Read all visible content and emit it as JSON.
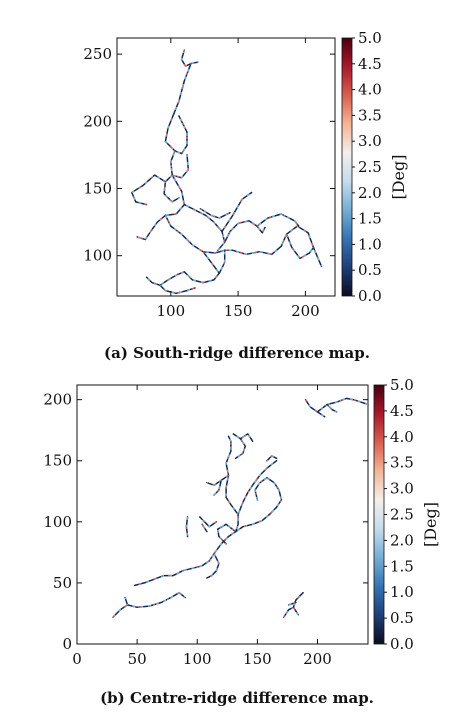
{
  "colors": {
    "axis": "#111111",
    "cmap_stops": [
      "#0b0b1e",
      "#1d3f78",
      "#3473b5",
      "#74aed6",
      "#c5dcec",
      "#f3efec",
      "#f5b596",
      "#d9604f",
      "#a8192b",
      "#4a0010"
    ]
  },
  "chart_data": [
    {
      "type": "line",
      "caption": "(a) South-ridge difference map.",
      "xlim": [
        60,
        222
      ],
      "ylim": [
        70,
        262
      ],
      "xticks": [
        "100",
        "150",
        "200"
      ],
      "yticks": [
        "100",
        "150",
        "200",
        "250"
      ],
      "colorbar": {
        "label": "[Deg]",
        "range": [
          0.0,
          5.0
        ],
        "ticks": [
          "0.0",
          "0.5",
          "1.0",
          "1.5",
          "2.0",
          "2.5",
          "3.0",
          "3.5",
          "4.0",
          "4.5",
          "5.0"
        ]
      },
      "series": [
        {
          "points": [
            [
              110,
              253
            ],
            [
              108,
              246
            ],
            [
              111,
              241
            ],
            [
              115,
              243
            ],
            [
              120,
              244
            ]
          ]
        },
        {
          "points": [
            [
              115,
              243
            ],
            [
              110,
              230
            ],
            [
              106,
              215
            ],
            [
              102,
              205
            ]
          ]
        },
        {
          "points": [
            [
              102,
              205
            ],
            [
              98,
              195
            ],
            [
              96,
              185
            ],
            [
              103,
              178
            ],
            [
              108,
              176
            ],
            [
              112,
              182
            ],
            [
              112,
              192
            ],
            [
              106,
              204
            ]
          ]
        },
        {
          "points": [
            [
              103,
              178
            ],
            [
              100,
              170
            ],
            [
              101,
              160
            ],
            [
              108,
              158
            ],
            [
              113,
              164
            ],
            [
              112,
              175
            ]
          ]
        },
        {
          "points": [
            [
              101,
              160
            ],
            [
              96,
              155
            ],
            [
              88,
              160
            ],
            [
              79,
              152
            ],
            [
              71,
              147
            ],
            [
              74,
              140
            ],
            [
              82,
              138
            ]
          ]
        },
        {
          "points": [
            [
              96,
              155
            ],
            [
              95,
              146
            ],
            [
              101,
              140
            ],
            [
              106,
              143
            ]
          ]
        },
        {
          "points": [
            [
              101,
              160
            ],
            [
              108,
              148
            ],
            [
              110,
              138
            ],
            [
              104,
              131
            ],
            [
              96,
              130
            ],
            [
              90,
              125
            ],
            [
              85,
              118
            ],
            [
              81,
              112
            ],
            [
              75,
              114
            ]
          ]
        },
        {
          "points": [
            [
              110,
              138
            ],
            [
              118,
              134
            ],
            [
              126,
              130
            ],
            [
              132,
              125
            ],
            [
              138,
              118
            ],
            [
              140,
              110
            ],
            [
              135,
              104
            ]
          ]
        },
        {
          "points": [
            [
              96,
              130
            ],
            [
              100,
              122
            ],
            [
              108,
              116
            ],
            [
              116,
              108
            ],
            [
              124,
              103
            ],
            [
              133,
              102
            ],
            [
              140,
              104
            ]
          ]
        },
        {
          "points": [
            [
              124,
              103
            ],
            [
              130,
              95
            ],
            [
              136,
              87
            ],
            [
              132,
              82
            ],
            [
              124,
              80
            ],
            [
              116,
              82
            ],
            [
              110,
              88
            ],
            [
              105,
              86
            ]
          ]
        },
        {
          "points": [
            [
              136,
              87
            ],
            [
              140,
              95
            ],
            [
              140,
              104
            ],
            [
              146,
              104
            ],
            [
              156,
              101
            ],
            [
              166,
              103
            ],
            [
              175,
              101
            ],
            [
              182,
              107
            ]
          ]
        },
        {
          "points": [
            [
              182,
              107
            ],
            [
              186,
              116
            ],
            [
              194,
              122
            ],
            [
              202,
              117
            ],
            [
              206,
              106
            ],
            [
              212,
              92
            ]
          ]
        },
        {
          "points": [
            [
              186,
              116
            ],
            [
              190,
              106
            ],
            [
              196,
              98
            ],
            [
              203,
              102
            ],
            [
              206,
              106
            ]
          ]
        },
        {
          "points": [
            [
              140,
              110
            ],
            [
              144,
              118
            ],
            [
              150,
              124
            ],
            [
              158,
              126
            ],
            [
              164,
              122
            ],
            [
              168,
              117
            ],
            [
              170,
              121
            ]
          ]
        },
        {
          "points": [
            [
              138,
              118
            ],
            [
              146,
              130
            ],
            [
              153,
              142
            ],
            [
              160,
              147
            ]
          ]
        },
        {
          "points": [
            [
              164,
              122
            ],
            [
              172,
              128
            ],
            [
              182,
              131
            ],
            [
              192,
              126
            ],
            [
              195,
              122
            ]
          ]
        },
        {
          "points": [
            [
              105,
              86
            ],
            [
              98,
              82
            ],
            [
              92,
              78
            ],
            [
              86,
              80
            ],
            [
              82,
              84
            ]
          ]
        },
        {
          "points": [
            [
              92,
              78
            ],
            [
              96,
              74
            ],
            [
              104,
              72
            ],
            [
              112,
              74
            ],
            [
              118,
              76
            ]
          ]
        },
        {
          "points": [
            [
              122,
              135
            ],
            [
              130,
              130
            ],
            [
              136,
              128
            ],
            [
              144,
              132
            ]
          ]
        }
      ]
    },
    {
      "type": "line",
      "caption": "(b) Centre-ridge difference map.",
      "xlim": [
        0,
        242
      ],
      "ylim": [
        0,
        212
      ],
      "xticks": [
        "0",
        "50",
        "100",
        "150",
        "200"
      ],
      "yticks": [
        "0",
        "50",
        "100",
        "150",
        "200"
      ],
      "colorbar": {
        "label": "[Deg]",
        "range": [
          0.0,
          5.0
        ],
        "ticks": [
          "0.0",
          "0.5",
          "1.0",
          "1.5",
          "2.0",
          "2.5",
          "3.0",
          "3.5",
          "4.0",
          "4.5",
          "5.0"
        ]
      },
      "series": [
        {
          "points": [
            [
              30,
              22
            ],
            [
              36,
              28
            ],
            [
              42,
              32
            ],
            [
              50,
              30
            ],
            [
              60,
              31
            ],
            [
              70,
              34
            ],
            [
              78,
              38
            ],
            [
              85,
              42
            ],
            [
              90,
              38
            ]
          ]
        },
        {
          "points": [
            [
              42,
              32
            ],
            [
              40,
              38
            ]
          ]
        },
        {
          "points": [
            [
              48,
              48
            ],
            [
              56,
              50
            ],
            [
              64,
              53
            ],
            [
              72,
              56
            ],
            [
              80,
              56
            ],
            [
              88,
              60
            ],
            [
              96,
              62
            ],
            [
              104,
              64
            ],
            [
              110,
              68
            ],
            [
              114,
              74
            ]
          ]
        },
        {
          "points": [
            [
              114,
              74
            ],
            [
              120,
              82
            ],
            [
              126,
              88
            ],
            [
              132,
              92
            ],
            [
              134,
              98
            ],
            [
              134,
              106
            ],
            [
              138,
              116
            ],
            [
              142,
              124
            ]
          ]
        },
        {
          "points": [
            [
              114,
              74
            ],
            [
              118,
              66
            ],
            [
              116,
              60
            ],
            [
              112,
              56
            ],
            [
              108,
              54
            ]
          ]
        },
        {
          "points": [
            [
              124,
              82
            ],
            [
              118,
              88
            ],
            [
              117,
              94
            ],
            [
              124,
              98
            ],
            [
              132,
              92
            ]
          ]
        },
        {
          "points": [
            [
              142,
              124
            ],
            [
              146,
              130
            ],
            [
              152,
              138
            ],
            [
              158,
              144
            ],
            [
              166,
              150
            ]
          ]
        },
        {
          "points": [
            [
              132,
              92
            ],
            [
              138,
              96
            ],
            [
              146,
              98
            ],
            [
              154,
              101
            ],
            [
              160,
              106
            ],
            [
              166,
              112
            ],
            [
              170,
              118
            ],
            [
              168,
              126
            ],
            [
              164,
              132
            ],
            [
              158,
              136
            ]
          ]
        },
        {
          "points": [
            [
              150,
              118
            ],
            [
              148,
              126
            ],
            [
              152,
              132
            ],
            [
              158,
              136
            ]
          ]
        },
        {
          "points": [
            [
              134,
              106
            ],
            [
              128,
              114
            ],
            [
              124,
              120
            ],
            [
              124,
              128
            ],
            [
              126,
              138
            ],
            [
              124,
              148
            ],
            [
              128,
              158
            ],
            [
              128,
              166
            ],
            [
              126,
              170
            ]
          ]
        },
        {
          "points": [
            [
              130,
              172
            ],
            [
              136,
              168
            ],
            [
              140,
              162
            ],
            [
              138,
              156
            ],
            [
              132,
              152
            ]
          ]
        },
        {
          "points": [
            [
              136,
              168
            ],
            [
              142,
              172
            ],
            [
              146,
              166
            ]
          ]
        },
        {
          "points": [
            [
              126,
              138
            ],
            [
              120,
              134
            ],
            [
              114,
              130
            ],
            [
              108,
              132
            ]
          ]
        },
        {
          "points": [
            [
              120,
              134
            ],
            [
              118,
              126
            ],
            [
              114,
              122
            ]
          ]
        },
        {
          "points": [
            [
              102,
              104
            ],
            [
              106,
              100
            ],
            [
              110,
              96
            ],
            [
              116,
              100
            ]
          ]
        },
        {
          "points": [
            [
              104,
              98
            ],
            [
              108,
              92
            ]
          ]
        },
        {
          "points": [
            [
              92,
              104
            ],
            [
              91,
              96
            ],
            [
              92,
              88
            ]
          ]
        },
        {
          "points": [
            [
              158,
              150
            ],
            [
              162,
              154
            ],
            [
              166,
              152
            ]
          ]
        },
        {
          "points": [
            [
              172,
              22
            ],
            [
              176,
              28
            ],
            [
              180,
              30
            ],
            [
              184,
              24
            ]
          ]
        },
        {
          "points": [
            [
              180,
              30
            ],
            [
              182,
              36
            ],
            [
              188,
              42
            ]
          ]
        },
        {
          "points": [
            [
              176,
              32
            ],
            [
              182,
              34
            ]
          ]
        },
        {
          "points": [
            [
              190,
              200
            ],
            [
              194,
              194
            ],
            [
              200,
              190
            ],
            [
              206,
              186
            ]
          ]
        },
        {
          "points": [
            [
              200,
              190
            ],
            [
              208,
              196
            ],
            [
              216,
              198
            ],
            [
              224,
              201
            ],
            [
              230,
              200
            ],
            [
              236,
              198
            ],
            [
              242,
              196
            ]
          ]
        },
        {
          "points": [
            [
              208,
              196
            ],
            [
              212,
              192
            ],
            [
              216,
              190
            ]
          ]
        }
      ]
    }
  ]
}
